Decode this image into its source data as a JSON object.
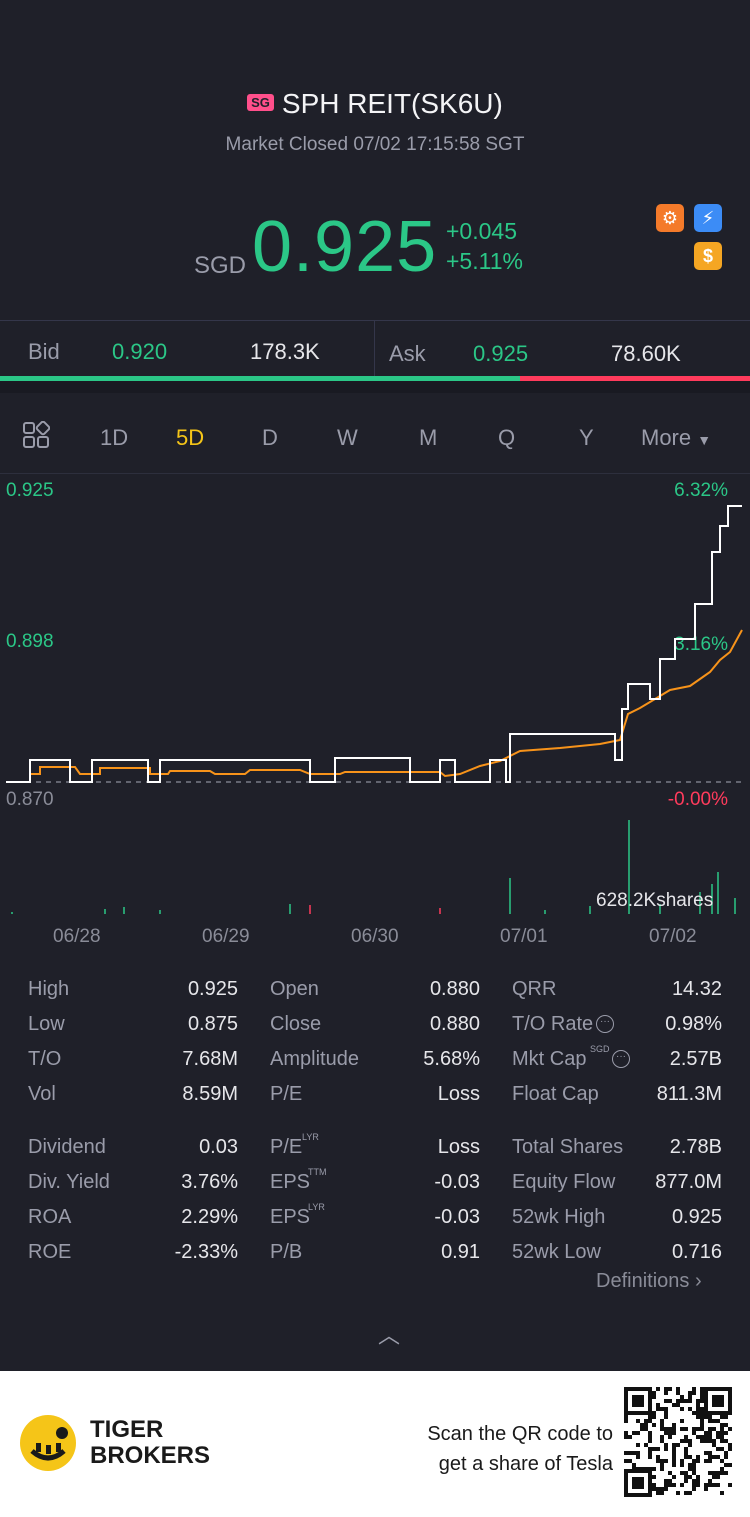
{
  "header": {
    "badge": "SG",
    "title": "SPH REIT(SK6U)",
    "status": "Market Closed 07/02 17:15:58 SGT"
  },
  "quote": {
    "currency": "SGD",
    "price": "0.925",
    "change": "+0.045",
    "change_pct": "+5.11%"
  },
  "icons": [
    "chart-signal-icon",
    "lightning-icon",
    "dollar-icon"
  ],
  "bidask": {
    "bid_label": "Bid",
    "bid_price": "0.920",
    "bid_size": "178.3K",
    "ask_label": "Ask",
    "ask_price": "0.925",
    "ask_size": "78.60K"
  },
  "tabs": [
    "1D",
    "5D",
    "D",
    "W",
    "M",
    "Q",
    "Y",
    "More"
  ],
  "active_tab": "5D",
  "chart": {
    "y_high": "0.925",
    "y_mid": "0.898",
    "y_low": "0.870",
    "pct_high": "6.32%",
    "pct_mid": "3.16%",
    "pct_low": "-0.00%",
    "volume_label": "628.2Kshares",
    "dates": [
      "06/28",
      "06/29",
      "06/30",
      "07/01",
      "07/02"
    ]
  },
  "chart_data": {
    "type": "line",
    "x": [
      "06/28",
      "06/29",
      "06/30",
      "07/01",
      "07/02"
    ],
    "ylim": [
      0.87,
      0.925
    ],
    "series": [
      {
        "values": [
          0.875,
          0.875,
          0.875,
          0.88,
          0.925
        ]
      },
      {
        "values": [
          0.873,
          0.873,
          0.873,
          0.878,
          0.913
        ]
      }
    ],
    "colors": {
      "price": "#ffffff",
      "avg": "#f7931a",
      "up": "#2bc787",
      "down": "#ff3b5c"
    }
  },
  "stats": {
    "col1": [
      [
        "High",
        "0.925"
      ],
      [
        "Low",
        "0.875"
      ],
      [
        "T/O",
        "7.68M"
      ],
      [
        "Vol",
        "8.59M"
      ],
      [
        "Dividend",
        "0.03"
      ],
      [
        "Div. Yield",
        "3.76%"
      ],
      [
        "ROA",
        "2.29%"
      ],
      [
        "ROE",
        "-2.33%"
      ]
    ],
    "col2": [
      [
        "Open",
        "0.880"
      ],
      [
        "Close",
        "0.880"
      ],
      [
        "Amplitude",
        "5.68%"
      ],
      [
        "P/E",
        "Loss"
      ],
      [
        "P/E",
        "Loss"
      ],
      [
        "EPS",
        "-0.03"
      ],
      [
        "EPS",
        "-0.03"
      ],
      [
        "P/B",
        "0.91"
      ]
    ],
    "col3": [
      [
        "QRR",
        "14.32"
      ],
      [
        "T/O Rate",
        "0.98%"
      ],
      [
        "Mkt Cap",
        "2.57B"
      ],
      [
        "Float Cap",
        "811.3M"
      ],
      [
        "Total Shares",
        "2.78B"
      ],
      [
        "Equity Flow",
        "877.0M"
      ],
      [
        "52wk High",
        "0.925"
      ],
      [
        "52wk Low",
        "0.716"
      ]
    ],
    "sup_pe": "LYR",
    "sup_eps_ttm": "TTM",
    "sup_eps_lyr": "LYR",
    "sup_mktcap": "SGD",
    "definitions": "Definitions"
  },
  "footer": {
    "brand_line1": "TIGER",
    "brand_line2": "BROKERS",
    "scan_line1": "Scan the QR code to",
    "scan_line2": "get a share of Tesla"
  }
}
